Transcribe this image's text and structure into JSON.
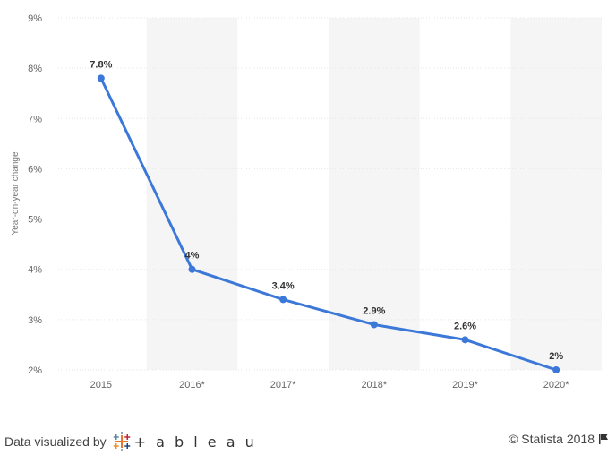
{
  "chart_data": {
    "type": "line",
    "title": "",
    "xlabel": "",
    "ylabel": "Year-on-year change",
    "categories": [
      "2015",
      "2016*",
      "2017*",
      "2018*",
      "2019*",
      "2020*"
    ],
    "series": [
      {
        "values": [
          7.8,
          4.0,
          3.4,
          2.9,
          2.6,
          2.0
        ],
        "data_labels": [
          "7.8%",
          "4%",
          "3.4%",
          "2.9%",
          "2.6%",
          "2%"
        ]
      }
    ],
    "ylim": [
      2,
      9
    ],
    "yticks": [
      "2%",
      "3%",
      "4%",
      "5%",
      "6%",
      "7%",
      "8%",
      "9%"
    ],
    "grid": true,
    "legend": "none",
    "colors": {
      "line": "#3c78d8",
      "band": "#f5f5f5",
      "grid": "#e6e6e6"
    }
  },
  "footer": {
    "credit_prefix": "Data visualized by",
    "credit_brand": "+ a b l e a u",
    "copyright": "© Statista 2018",
    "tableau_icon": "tableau-logo-icon",
    "flag_icon": "flag-icon"
  }
}
